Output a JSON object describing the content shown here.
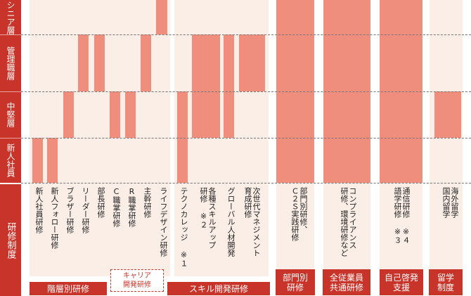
{
  "colors": {
    "sidebar": "#c8342a",
    "strip": "#fbeee7",
    "bar": "#ef8e7c",
    "category": "#c8342a"
  },
  "levels": [
    "シニア層",
    "管理職層",
    "中堅層",
    "新人社員"
  ],
  "vertical_axis_label": "研修制度",
  "programs": [
    {
      "label": "新人社員研修",
      "levels": [
        4
      ]
    },
    {
      "label": "新人フォロー研修",
      "levels": [
        4
      ]
    },
    {
      "label": "ブラザー研修",
      "levels": [
        3
      ]
    },
    {
      "label": "リーダー研修",
      "levels": [
        2
      ]
    },
    {
      "label": "部長研修",
      "levels": [
        2
      ]
    },
    {
      "label": "C職掌研修",
      "levels": [
        3
      ]
    },
    {
      "label": "R職掌研修",
      "levels": [
        3
      ]
    },
    {
      "label": "主幹研修",
      "levels": [
        2
      ]
    },
    {
      "label": "ライフデザイン研修",
      "levels": [
        1
      ]
    },
    {
      "label": "テクノカレッジ ※１",
      "levels": [
        3,
        4
      ]
    },
    {
      "label": "各種スキルアップ\n研修 ※２",
      "levels": [
        2,
        3
      ]
    },
    {
      "label": "グローバル人材開発",
      "levels": [
        2,
        3
      ]
    },
    {
      "label": "次世代マネジメント\n育成研修",
      "levels": [
        2
      ]
    },
    {
      "label": "部門別研修、\nＣ２Ｓ実践研修",
      "levels": [
        1,
        2,
        3,
        4
      ]
    },
    {
      "label": "コンプライアンス\n研修、環境研修など",
      "levels": [
        1,
        2,
        3,
        4
      ]
    },
    {
      "label": "通信研修 ※４\n語学研修 ※３",
      "levels": [
        1,
        2,
        3,
        4
      ]
    },
    {
      "label": "海外留学\n国内留学",
      "levels": [
        3
      ]
    }
  ],
  "categories": [
    {
      "label": "階層別研修",
      "style": "solid"
    },
    {
      "label": "キャリア\n開発研修",
      "style": "dashed"
    },
    {
      "label": "スキル開発研修",
      "style": "solid"
    },
    {
      "label": "部門別\n研修",
      "style": "solid"
    },
    {
      "label": "全従業員\n共通研修",
      "style": "solid"
    },
    {
      "label": "自己啓発\n支援",
      "style": "solid"
    },
    {
      "label": "留学\n制度",
      "style": "solid"
    }
  ]
}
